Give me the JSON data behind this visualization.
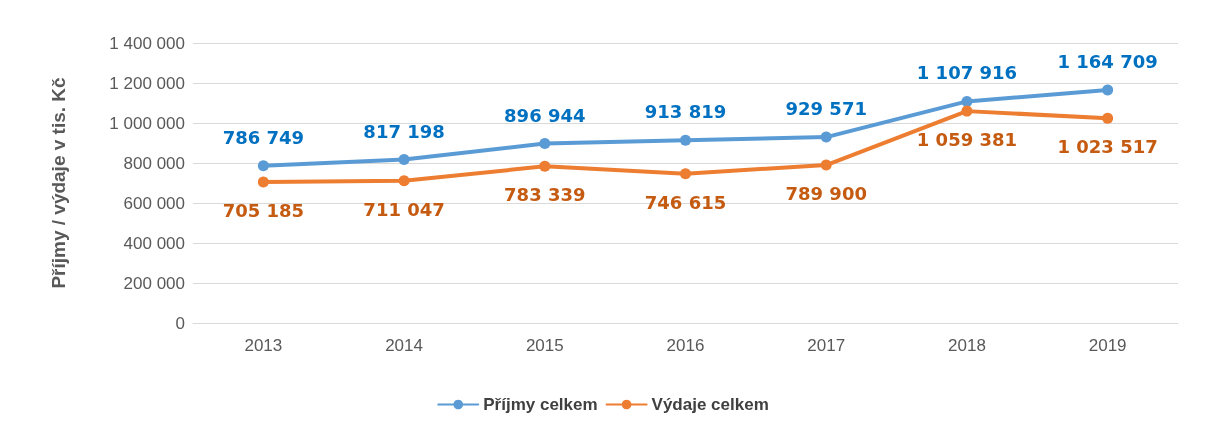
{
  "chart_data": {
    "type": "line",
    "ylabel": "Příjmy / výdaje v tis. Kč",
    "categories": [
      "2013",
      "2014",
      "2015",
      "2016",
      "2017",
      "2018",
      "2019"
    ],
    "series": [
      {
        "name": "Příjmy celkem",
        "color": "#5b9bd5",
        "values": [
          786749,
          817198,
          896944,
          913819,
          929571,
          1107916,
          1164709
        ]
      },
      {
        "name": "Výdaje celkem",
        "color": "#ed7d31",
        "values": [
          705185,
          711047,
          783339,
          746615,
          789900,
          1059381,
          1023517
        ]
      }
    ],
    "ylim": [
      0,
      1400000
    ],
    "yticks": [
      0,
      200000,
      400000,
      600000,
      800000,
      1000000,
      1200000,
      1400000
    ],
    "grid": "y",
    "legend": "bottom",
    "marker": "circle",
    "line_style": "solid",
    "data_labels": true
  }
}
